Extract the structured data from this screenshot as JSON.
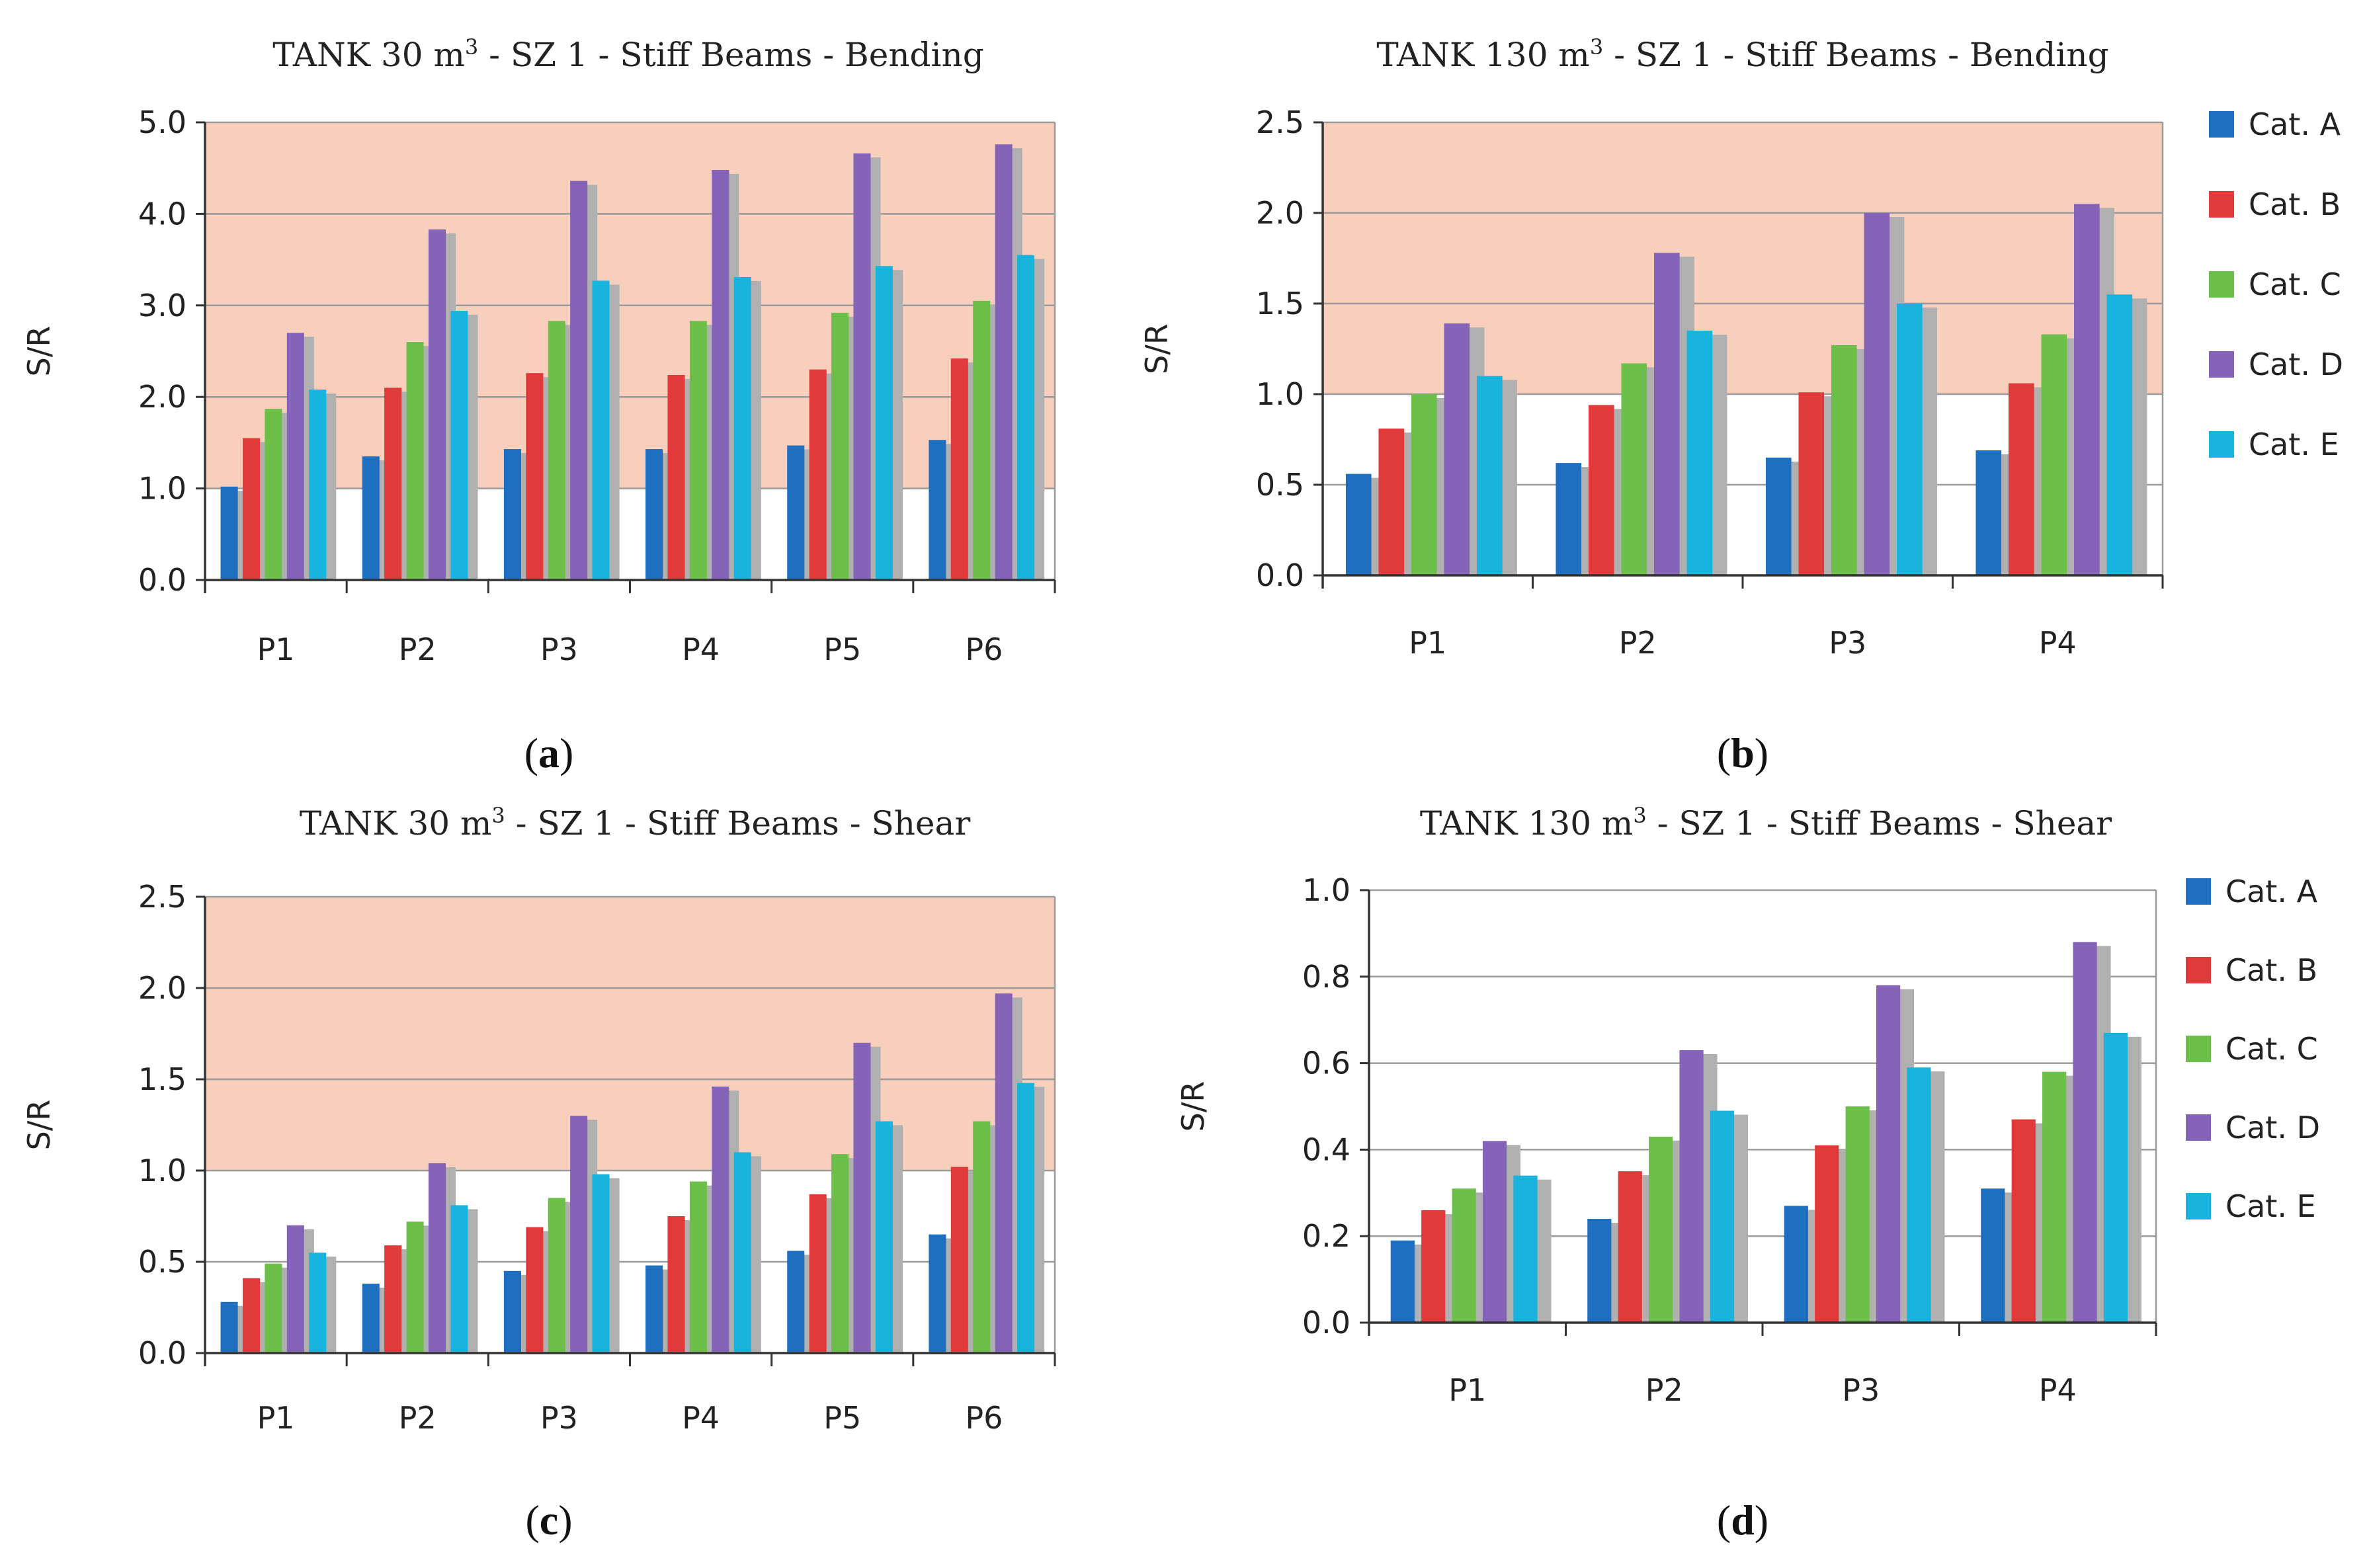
{
  "colors": {
    "danger_zone": "#f8cfbd",
    "grid": "#9a9a9a",
    "axis": "#333333",
    "bar_shadow": "#b0b0b0",
    "series": [
      "#1e6fbf",
      "#e03a3a",
      "#6cc04a",
      "#8463b8",
      "#18b4de"
    ]
  },
  "legend_items": [
    "Cat. A",
    "Cat. B",
    "Cat. C",
    "Cat. D",
    "Cat. E"
  ],
  "chart_data": [
    {
      "id": "a",
      "type": "bar",
      "title_main": "TANK 30 m",
      "title_sup": "3",
      "title_rest": " - SZ 1 - Stiff Beams - Bending",
      "caption_open": "(",
      "caption_letter": "a",
      "caption_close": ")",
      "ylabel": "S/R",
      "ylim": [
        0,
        5
      ],
      "yticks": [
        "0.0",
        "1.0",
        "2.0",
        "3.0",
        "4.0",
        "5.0"
      ],
      "threshold": 1.0,
      "categories": [
        "P1",
        "P2",
        "P3",
        "P4",
        "P5",
        "P6"
      ],
      "legend_shown": false,
      "series": [
        {
          "name": "Cat. A",
          "values": [
            1.02,
            1.35,
            1.43,
            1.43,
            1.47,
            1.53
          ]
        },
        {
          "name": "Cat. B",
          "values": [
            1.55,
            2.1,
            2.26,
            2.24,
            2.3,
            2.42
          ]
        },
        {
          "name": "Cat. C",
          "values": [
            1.87,
            2.6,
            2.83,
            2.83,
            2.92,
            3.05
          ]
        },
        {
          "name": "Cat. D",
          "values": [
            2.7,
            3.83,
            4.36,
            4.48,
            4.66,
            4.76
          ]
        },
        {
          "name": "Cat. E",
          "values": [
            2.08,
            2.94,
            3.27,
            3.31,
            3.43,
            3.55
          ]
        }
      ]
    },
    {
      "id": "b",
      "type": "bar",
      "title_main": "TANK 130 m",
      "title_sup": "3",
      "title_rest": " - SZ 1 - Stiff Beams - Bending",
      "caption_open": "(",
      "caption_letter": "b",
      "caption_close": ")",
      "ylabel": "S/R",
      "ylim": [
        0,
        2.5
      ],
      "yticks": [
        "0.0",
        "0.5",
        "1.0",
        "1.5",
        "2.0",
        "2.5"
      ],
      "threshold": 1.0,
      "categories": [
        "P1",
        "P2",
        "P3",
        "P4"
      ],
      "legend_shown": true,
      "series": [
        {
          "name": "Cat. A",
          "values": [
            0.56,
            0.62,
            0.65,
            0.69
          ]
        },
        {
          "name": "Cat. B",
          "values": [
            0.81,
            0.94,
            1.01,
            1.06
          ]
        },
        {
          "name": "Cat. C",
          "values": [
            1.0,
            1.17,
            1.27,
            1.33
          ]
        },
        {
          "name": "Cat. D",
          "values": [
            1.39,
            1.78,
            2.0,
            2.05
          ]
        },
        {
          "name": "Cat. E",
          "values": [
            1.1,
            1.35,
            1.5,
            1.55
          ]
        }
      ]
    },
    {
      "id": "c",
      "type": "bar",
      "title_main": "TANK 30 m",
      "title_sup": "3",
      "title_rest": " - SZ 1 - Stiff Beams - Shear",
      "caption_open": "(",
      "caption_letter": "c",
      "caption_close": ")",
      "ylabel": "S/R",
      "ylim": [
        0,
        2.5
      ],
      "yticks": [
        "0.0",
        "0.5",
        "1.0",
        "1.5",
        "2.0",
        "2.5"
      ],
      "threshold": 1.0,
      "categories": [
        "P1",
        "P2",
        "P3",
        "P4",
        "P5",
        "P6"
      ],
      "legend_shown": false,
      "series": [
        {
          "name": "Cat. A",
          "values": [
            0.28,
            0.38,
            0.45,
            0.48,
            0.56,
            0.65
          ]
        },
        {
          "name": "Cat. B",
          "values": [
            0.41,
            0.59,
            0.69,
            0.75,
            0.87,
            1.02
          ]
        },
        {
          "name": "Cat. C",
          "values": [
            0.49,
            0.72,
            0.85,
            0.94,
            1.09,
            1.27
          ]
        },
        {
          "name": "Cat. D",
          "values": [
            0.7,
            1.04,
            1.3,
            1.46,
            1.7,
            1.97
          ]
        },
        {
          "name": "Cat. E",
          "values": [
            0.55,
            0.81,
            0.98,
            1.1,
            1.27,
            1.48
          ]
        }
      ]
    },
    {
      "id": "d",
      "type": "bar",
      "title_main": "TANK 130 m",
      "title_sup": "3",
      "title_rest": " - SZ 1 - Stiff Beams - Shear",
      "caption_open": "(",
      "caption_letter": "d",
      "caption_close": ")",
      "ylabel": "S/R",
      "ylim": [
        0,
        1.0
      ],
      "yticks": [
        "0.0",
        "0.2",
        "0.4",
        "0.6",
        "0.8",
        "1.0"
      ],
      "threshold": null,
      "categories": [
        "P1",
        "P2",
        "P3",
        "P4"
      ],
      "legend_shown": true,
      "series": [
        {
          "name": "Cat. A",
          "values": [
            0.19,
            0.24,
            0.27,
            0.31
          ]
        },
        {
          "name": "Cat. B",
          "values": [
            0.26,
            0.35,
            0.41,
            0.47
          ]
        },
        {
          "name": "Cat. C",
          "values": [
            0.31,
            0.43,
            0.5,
            0.58
          ]
        },
        {
          "name": "Cat. D",
          "values": [
            0.42,
            0.63,
            0.78,
            0.88
          ]
        },
        {
          "name": "Cat. E",
          "values": [
            0.34,
            0.49,
            0.59,
            0.67
          ]
        }
      ]
    }
  ]
}
